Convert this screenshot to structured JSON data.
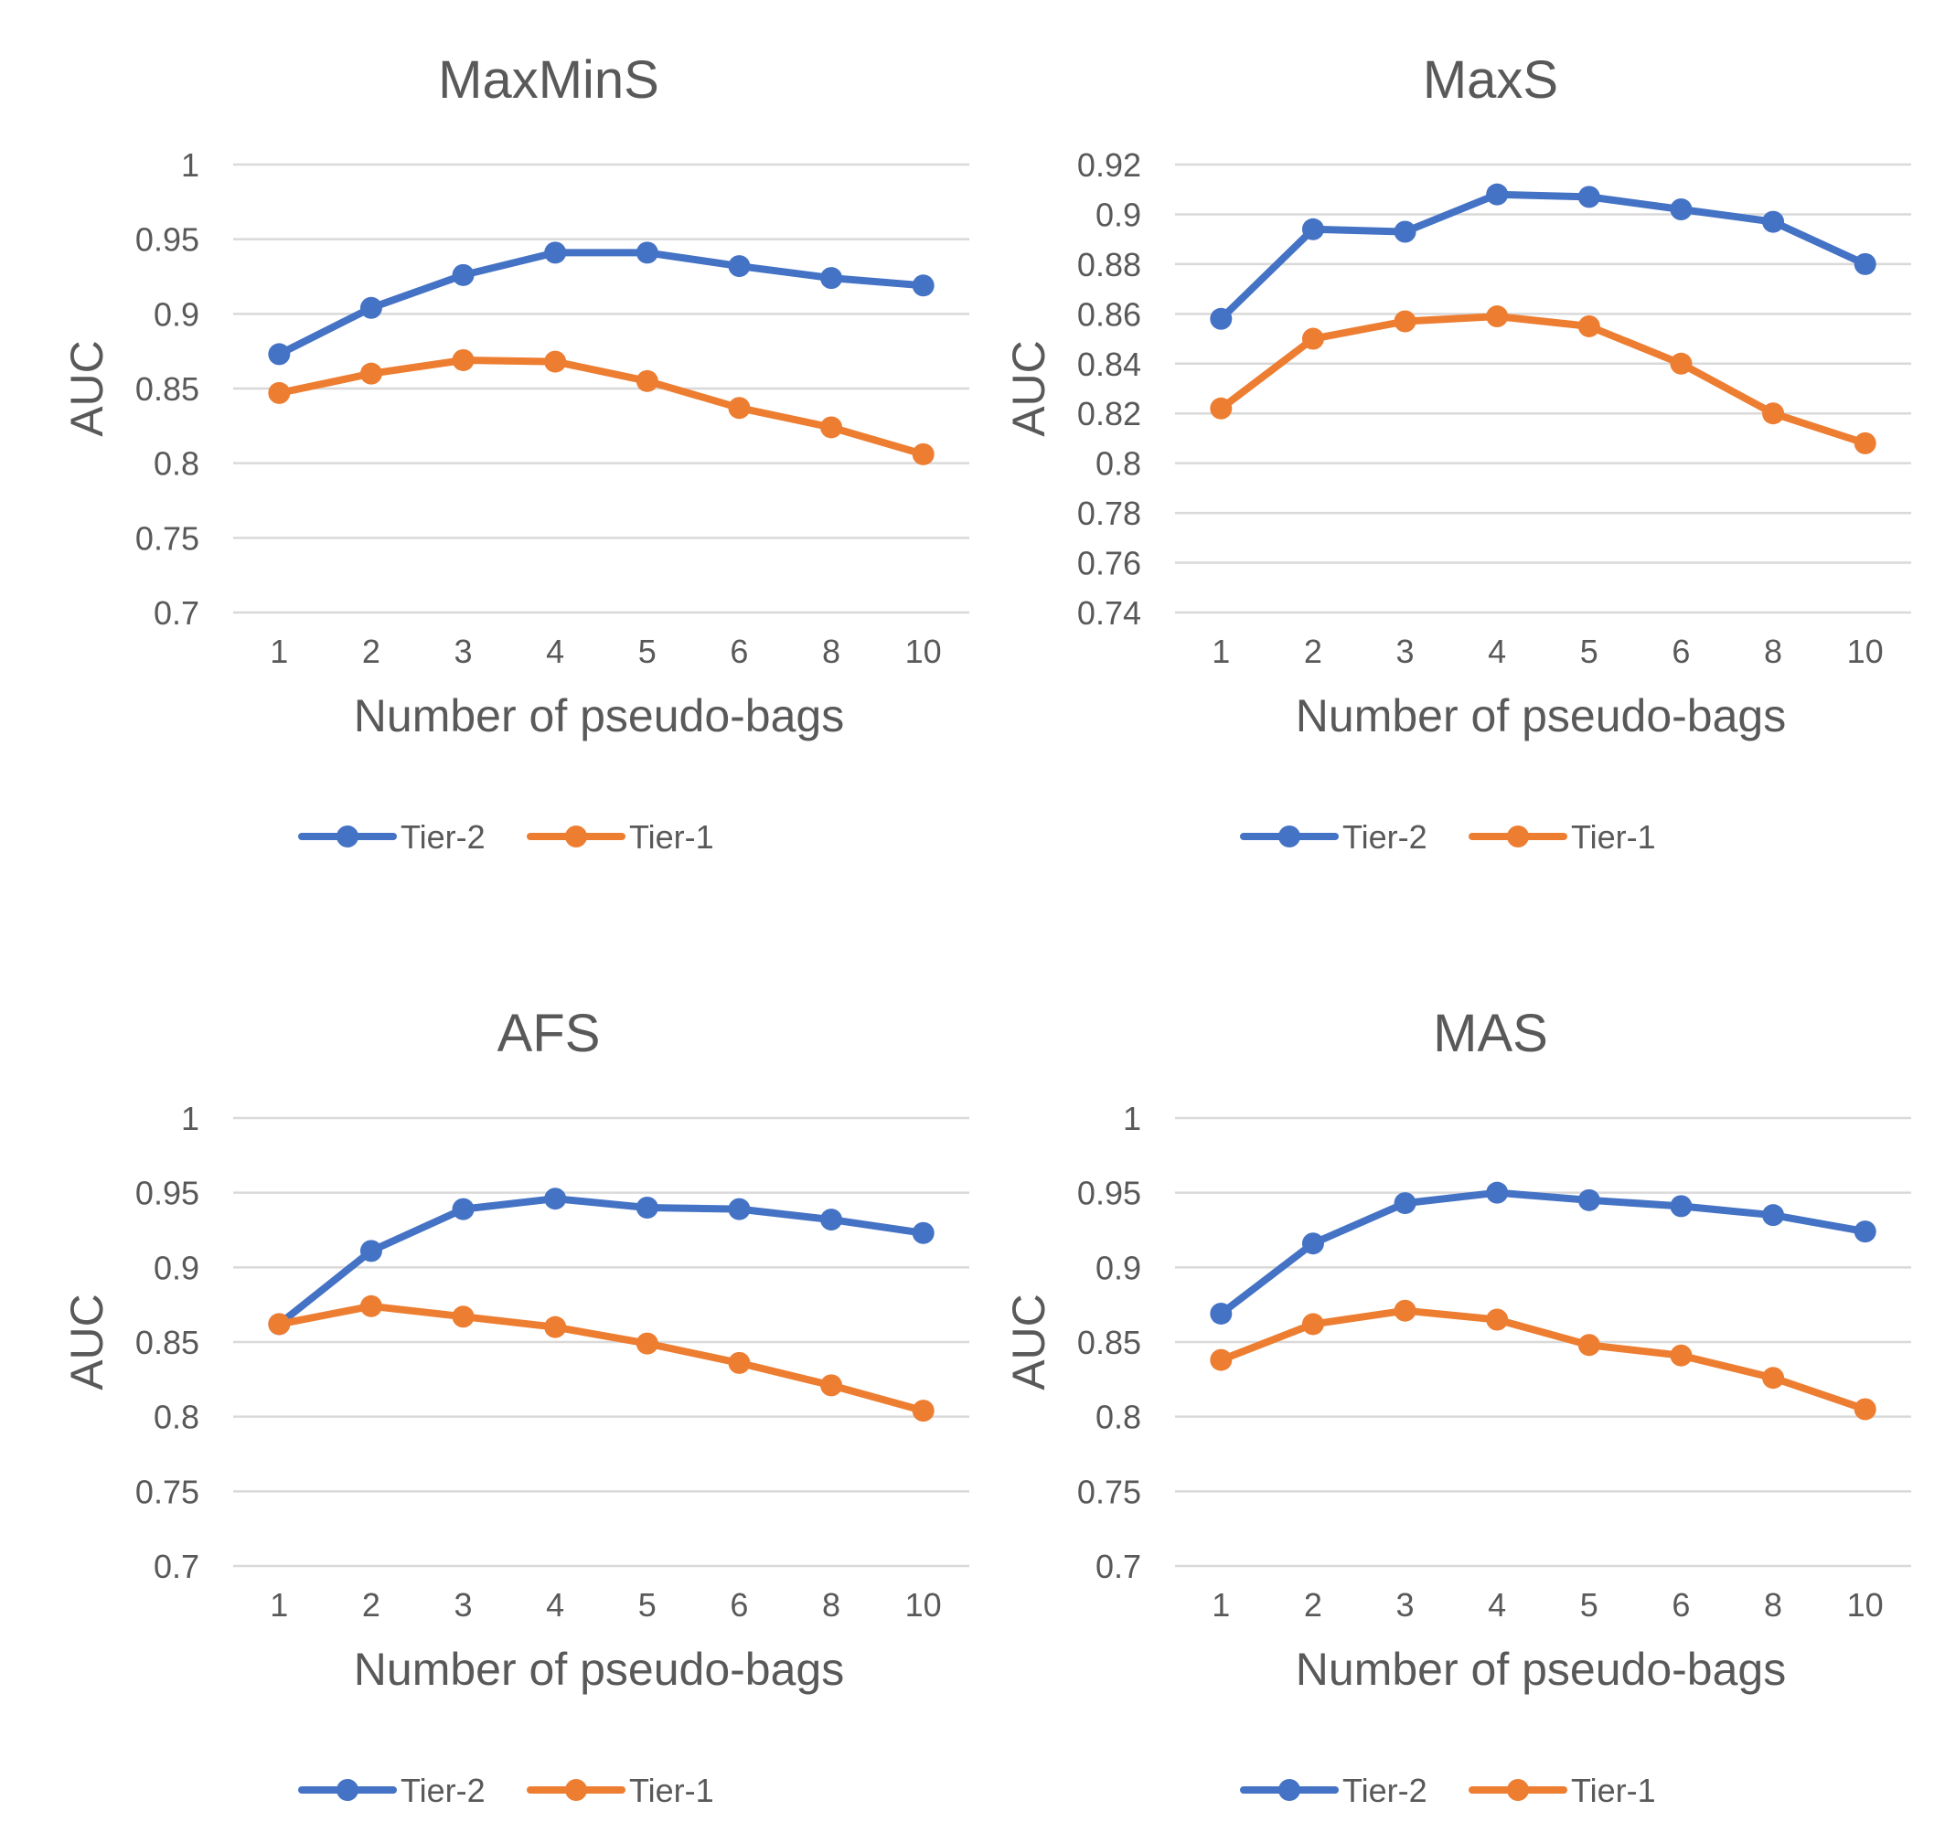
{
  "colors": {
    "tier2": "#4472C4",
    "tier1": "#ED7D31"
  },
  "chart_data": [
    {
      "type": "line",
      "title": "MaxMinS",
      "xlabel": "Number of pseudo-bags",
      "ylabel": "AUC",
      "categories": [
        "1",
        "2",
        "3",
        "4",
        "5",
        "6",
        "8",
        "10"
      ],
      "ylim": [
        0.7,
        1
      ],
      "yticks": [
        0.7,
        0.75,
        0.8,
        0.85,
        0.9,
        0.95,
        1
      ],
      "ytick_labels": [
        "0.7",
        "0.75",
        "0.8",
        "0.85",
        "0.9",
        "0.95",
        "1"
      ],
      "legend_position": "bottom",
      "series": [
        {
          "name": "Tier-2",
          "values": [
            0.873,
            0.904,
            0.926,
            0.941,
            0.941,
            0.932,
            0.924,
            0.919
          ]
        },
        {
          "name": "Tier-1",
          "values": [
            0.847,
            0.86,
            0.869,
            0.868,
            0.855,
            0.837,
            0.824,
            0.806
          ]
        }
      ]
    },
    {
      "type": "line",
      "title": "MaxS",
      "xlabel": "Number of pseudo-bags",
      "ylabel": "AUC",
      "categories": [
        "1",
        "2",
        "3",
        "4",
        "5",
        "6",
        "8",
        "10"
      ],
      "ylim": [
        0.74,
        0.92
      ],
      "yticks": [
        0.74,
        0.76,
        0.78,
        0.8,
        0.82,
        0.84,
        0.86,
        0.88,
        0.9,
        0.92
      ],
      "ytick_labels": [
        "0.74",
        "0.76",
        "0.78",
        "0.8",
        "0.82",
        "0.84",
        "0.86",
        "0.88",
        "0.9",
        "0.92"
      ],
      "legend_position": "bottom",
      "series": [
        {
          "name": "Tier-2",
          "values": [
            0.858,
            0.894,
            0.893,
            0.908,
            0.907,
            0.902,
            0.897,
            0.88
          ]
        },
        {
          "name": "Tier-1",
          "values": [
            0.822,
            0.85,
            0.857,
            0.859,
            0.855,
            0.84,
            0.82,
            0.808
          ]
        }
      ]
    },
    {
      "type": "line",
      "title": "AFS",
      "xlabel": "Number of pseudo-bags",
      "ylabel": "AUC",
      "categories": [
        "1",
        "2",
        "3",
        "4",
        "5",
        "6",
        "8",
        "10"
      ],
      "ylim": [
        0.7,
        1
      ],
      "yticks": [
        0.7,
        0.75,
        0.8,
        0.85,
        0.9,
        0.95,
        1
      ],
      "ytick_labels": [
        "0.7",
        "0.75",
        "0.8",
        "0.85",
        "0.9",
        "0.95",
        "1"
      ],
      "legend_position": "bottom",
      "series": [
        {
          "name": "Tier-2",
          "values": [
            0.862,
            0.911,
            0.939,
            0.946,
            0.94,
            0.939,
            0.932,
            0.923
          ]
        },
        {
          "name": "Tier-1",
          "values": [
            0.862,
            0.874,
            0.867,
            0.86,
            0.849,
            0.836,
            0.821,
            0.804
          ]
        }
      ]
    },
    {
      "type": "line",
      "title": "MAS",
      "xlabel": "Number of pseudo-bags",
      "ylabel": "AUC",
      "categories": [
        "1",
        "2",
        "3",
        "4",
        "5",
        "6",
        "8",
        "10"
      ],
      "ylim": [
        0.7,
        1
      ],
      "yticks": [
        0.7,
        0.75,
        0.8,
        0.85,
        0.9,
        0.95,
        1
      ],
      "ytick_labels": [
        "0.7",
        "0.75",
        "0.8",
        "0.85",
        "0.9",
        "0.95",
        "1"
      ],
      "legend_position": "bottom",
      "series": [
        {
          "name": "Tier-2",
          "values": [
            0.869,
            0.916,
            0.943,
            0.95,
            0.945,
            0.941,
            0.935,
            0.924
          ]
        },
        {
          "name": "Tier-1",
          "values": [
            0.838,
            0.862,
            0.871,
            0.865,
            0.848,
            0.841,
            0.826,
            0.805
          ]
        }
      ]
    }
  ]
}
